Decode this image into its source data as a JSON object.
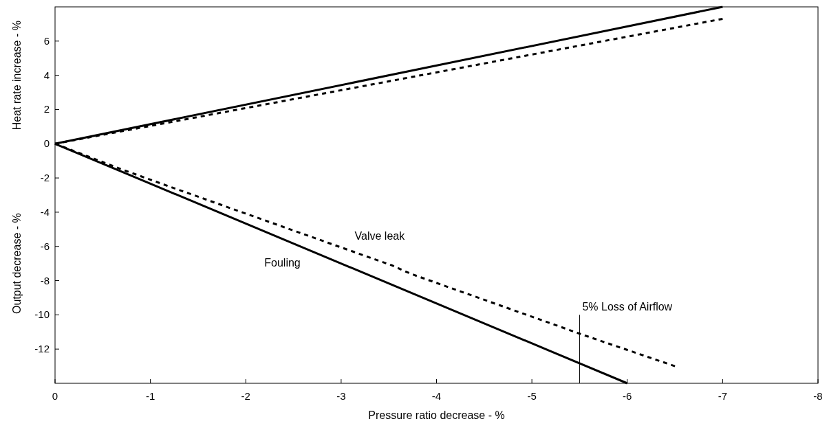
{
  "chart_data": {
    "type": "line",
    "xlabel": "Pressure ratio decrease - %",
    "ylabel": "Heat rate increase - %",
    "xlim": [
      0,
      -8
    ],
    "xticks": [
      0,
      -1,
      -2,
      -3,
      -4,
      -5,
      -6,
      -7,
      -8
    ],
    "ylim": [
      -14,
      8
    ],
    "yticks": [
      6,
      4,
      2,
      0,
      -2,
      -4,
      -6,
      -8,
      -10,
      -12
    ],
    "series": [
      {
        "color": "#000000",
        "line_style": "solid",
        "x": [
          0,
          -7
        ],
        "values": [
          0,
          8
        ]
      },
      {
        "color": "#000000",
        "line_style": "dashed",
        "x": [
          0,
          -7
        ],
        "values": [
          0,
          7.3
        ]
      },
      {
        "name": "Fouling",
        "color": "#000000",
        "line_style": "solid",
        "x": [
          0,
          -6
        ],
        "values": [
          0,
          -14
        ]
      },
      {
        "name": "Valve leak",
        "color": "#000000",
        "line_style": "dashed",
        "x": [
          0,
          -0.7,
          -1.2,
          -2.97,
          -3.53,
          -3.73,
          -5.25,
          -5.5,
          -6.5
        ],
        "values": [
          0,
          -1.5,
          -2.5,
          -6.0,
          -7.1,
          -7.6,
          -10.6,
          -11.1,
          -13
        ]
      },
      {
        "color": "#000000",
        "line_style": "solid",
        "x": [
          -5.5,
          -5.5
        ],
        "values": [
          -14,
          -10
        ]
      }
    ],
    "annotations": [
      "Output decrease - %",
      {
        "text": "5% Loss of Airflow",
        "x": -5.5,
        "y": -10
      }
    ]
  }
}
